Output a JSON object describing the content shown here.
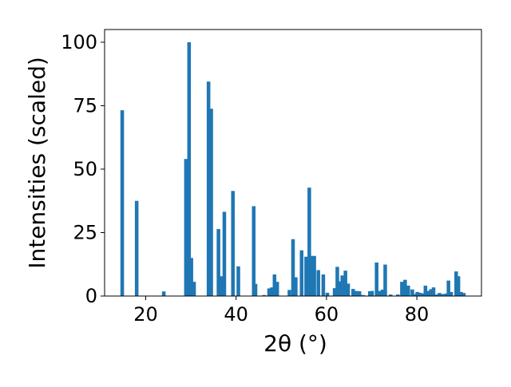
{
  "chart_data": {
    "type": "bar",
    "title": "",
    "xlabel": "2θ (°)",
    "ylabel": "Intensities (scaled)",
    "xlim": [
      10.9,
      94.3
    ],
    "ylim": [
      0,
      105
    ],
    "x_ticks": [
      20,
      40,
      60,
      80
    ],
    "y_ticks": [
      0,
      25,
      50,
      75,
      100
    ],
    "grid": false,
    "bar_color": "#1f77b4",
    "bar_width": 0.8,
    "x": [
      14.8,
      18.0,
      24.0,
      28.9,
      29.6,
      30.1,
      30.7,
      33.9,
      34.5,
      36.1,
      36.7,
      37.4,
      39.3,
      40.5,
      43.9,
      44.3,
      46.2,
      47.3,
      47.9,
      48.5,
      49.1,
      51.8,
      52.6,
      53.2,
      54.5,
      55.5,
      56.2,
      56.7,
      57.3,
      58.2,
      59.3,
      60.2,
      61.8,
      62.4,
      62.9,
      63.5,
      64.2,
      64.8,
      65.9,
      66.5,
      67.3,
      68.1,
      69.6,
      70.1,
      71.1,
      71.9,
      72.4,
      73.0,
      74.2,
      75.8,
      76.7,
      77.4,
      78.1,
      79.0,
      79.6,
      80.1,
      80.6,
      81.2,
      81.9,
      82.6,
      83.1,
      83.7,
      84.4,
      85.0,
      85.7,
      86.5,
      87.0,
      87.6,
      88.7,
      89.2,
      89.8,
      90.4
    ],
    "values": [
      73.2,
      37.5,
      1.8,
      54.0,
      100.0,
      15.0,
      5.6,
      84.5,
      73.8,
      26.4,
      7.8,
      33.2,
      41.4,
      11.7,
      35.4,
      4.8,
      0.4,
      3.0,
      3.4,
      8.5,
      5.6,
      2.4,
      22.4,
      7.4,
      18.0,
      15.5,
      42.7,
      15.8,
      15.8,
      10.2,
      8.5,
      1.3,
      3.1,
      11.5,
      5.8,
      8.1,
      10.0,
      4.9,
      2.8,
      2.0,
      1.9,
      0.4,
      1.9,
      2.0,
      13.2,
      2.0,
      2.5,
      12.4,
      0.6,
      0.6,
      5.6,
      6.4,
      4.1,
      2.6,
      0.8,
      1.6,
      1.3,
      1.1,
      4.1,
      2.0,
      2.7,
      3.4,
      0.6,
      1.2,
      0.8,
      1.0,
      6.1,
      1.6,
      9.7,
      7.8,
      1.6,
      1.2
    ]
  }
}
